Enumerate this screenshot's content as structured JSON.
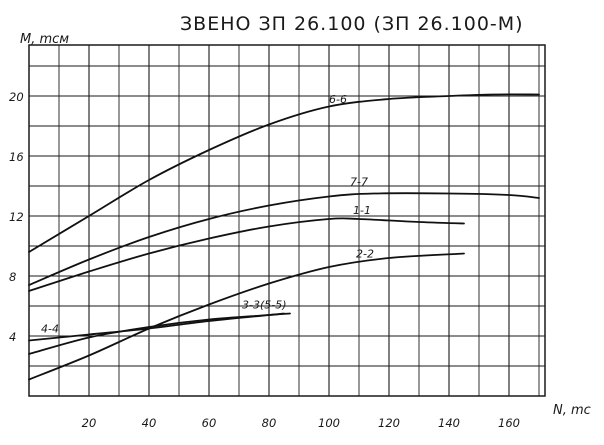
{
  "chart_data": {
    "type": "line",
    "title": "ЗВЕНО ЗП  26.100 (ЗП 26.100-М)",
    "xlabel": "N, mc",
    "ylabel": "M, mcм",
    "xlim": [
      0,
      172
    ],
    "ylim": [
      0,
      23.4
    ],
    "x_ticks": [
      20,
      40,
      60,
      80,
      100,
      120,
      140,
      160
    ],
    "y_ticks": [
      4,
      8,
      12,
      16,
      20
    ],
    "grid": true,
    "series": [
      {
        "name": "6-6",
        "x": [
          0,
          20,
          40,
          60,
          80,
          100,
          120,
          140,
          155,
          170
        ],
        "y": [
          9.6,
          12.0,
          14.4,
          16.4,
          18.1,
          19.3,
          19.8,
          20.0,
          20.1,
          20.1
        ]
      },
      {
        "name": "7-7",
        "x": [
          0,
          20,
          40,
          60,
          80,
          100,
          115,
          140,
          160,
          170
        ],
        "y": [
          7.4,
          9.1,
          10.6,
          11.8,
          12.7,
          13.3,
          13.5,
          13.5,
          13.4,
          13.2
        ]
      },
      {
        "name": "1-1",
        "x": [
          0,
          20,
          40,
          60,
          80,
          100,
          110,
          130,
          145
        ],
        "y": [
          7.0,
          8.3,
          9.5,
          10.5,
          11.3,
          11.8,
          11.8,
          11.6,
          11.5
        ]
      },
      {
        "name": "2-2",
        "x": [
          0,
          20,
          40,
          60,
          80,
          100,
          120,
          145
        ],
        "y": [
          1.1,
          2.7,
          4.5,
          6.1,
          7.5,
          8.6,
          9.2,
          9.5
        ]
      },
      {
        "name": "4-4",
        "x": [
          0,
          20,
          40,
          60,
          80,
          85
        ],
        "y": [
          2.8,
          3.9,
          4.6,
          5.1,
          5.4,
          5.5
        ]
      },
      {
        "name": "3-3(5-5)",
        "x": [
          0,
          20,
          40,
          60,
          80,
          87
        ],
        "y": [
          3.7,
          4.1,
          4.5,
          5.0,
          5.4,
          5.5
        ]
      }
    ],
    "series_labels": {
      "6-6": "6-6",
      "7-7": "7-7",
      "1-1": "1-1",
      "2-2": "2-2",
      "4-4": "4-4",
      "3-3(5-5)": "3-3(5-5)"
    }
  }
}
